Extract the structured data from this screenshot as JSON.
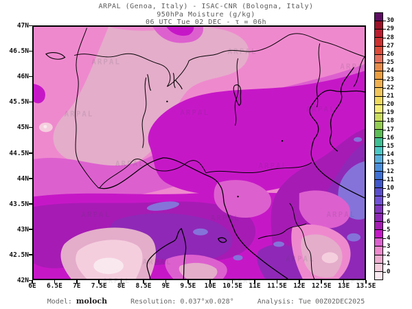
{
  "header": {
    "line1": "ARPAL (Genoa, Italy)  -  ISAC-CNR (Bologna, Italy)",
    "line2": "950hPa Moisture (g/kg)",
    "line3": "06 UTC Tue 02 DEC  -  τ = 06h"
  },
  "axes": {
    "y_ticks": [
      "47N",
      "46.5N",
      "46N",
      "45.5N",
      "45N",
      "44.5N",
      "44N",
      "43.5N",
      "43N",
      "42.5N",
      "42N"
    ],
    "x_ticks": [
      "6E",
      "6.5E",
      "7E",
      "7.5E",
      "8E",
      "8.5E",
      "9E",
      "9.5E",
      "10E",
      "10.5E",
      "11E",
      "11.5E",
      "12E",
      "12.5E",
      "13E",
      "13.5E"
    ]
  },
  "colorbar": {
    "labels": [
      "30",
      "29",
      "28",
      "27",
      "26",
      "25",
      "24",
      "23",
      "22",
      "21",
      "20",
      "19",
      "18",
      "17",
      "16",
      "15",
      "14",
      "13",
      "12",
      "11",
      "10",
      "9",
      "8",
      "7",
      "6",
      "5",
      "4",
      "3",
      "2",
      "1",
      "0"
    ],
    "cells": [
      "#5e0d63",
      "#9c1127",
      "#bb1c2e",
      "#ce3030",
      "#dd4b38",
      "#e4705c",
      "#e78b49",
      "#ec9e3f",
      "#f0b050",
      "#f2c55b",
      "#f0da5e",
      "#f4ee78",
      "#c9dc5c",
      "#93cc52",
      "#5cbc55",
      "#3fbe94",
      "#4cc8c4",
      "#57b0dc",
      "#4a8edd",
      "#3f70d5",
      "#4058cb",
      "#5a4ecd",
      "#7152d6",
      "#8136c0",
      "#8f28b7",
      "#a61bb4",
      "#c617c7",
      "#dd60cf",
      "#ef89ce",
      "#eeadd0",
      "#f5cede",
      "#fae9f0"
    ]
  },
  "map_palette": {
    "lv0": "#f9e9ef",
    "lv1": "#f5cede",
    "lv2": "#e4adca",
    "lv3": "#ef89ce",
    "lv4": "#dd60cf",
    "lv5": "#c617c7",
    "lv6": "#a61bb4",
    "lv7": "#8f28b7",
    "lv8": "#8573da"
  },
  "watermark": {
    "text": "ARPAL"
  },
  "footer": {
    "model_label": "Model:",
    "model_value": "moloch",
    "resolution": "Resolution: 0.037°x0.028°",
    "analysis": "Analysis: Tue 00Z02DEC2025"
  }
}
